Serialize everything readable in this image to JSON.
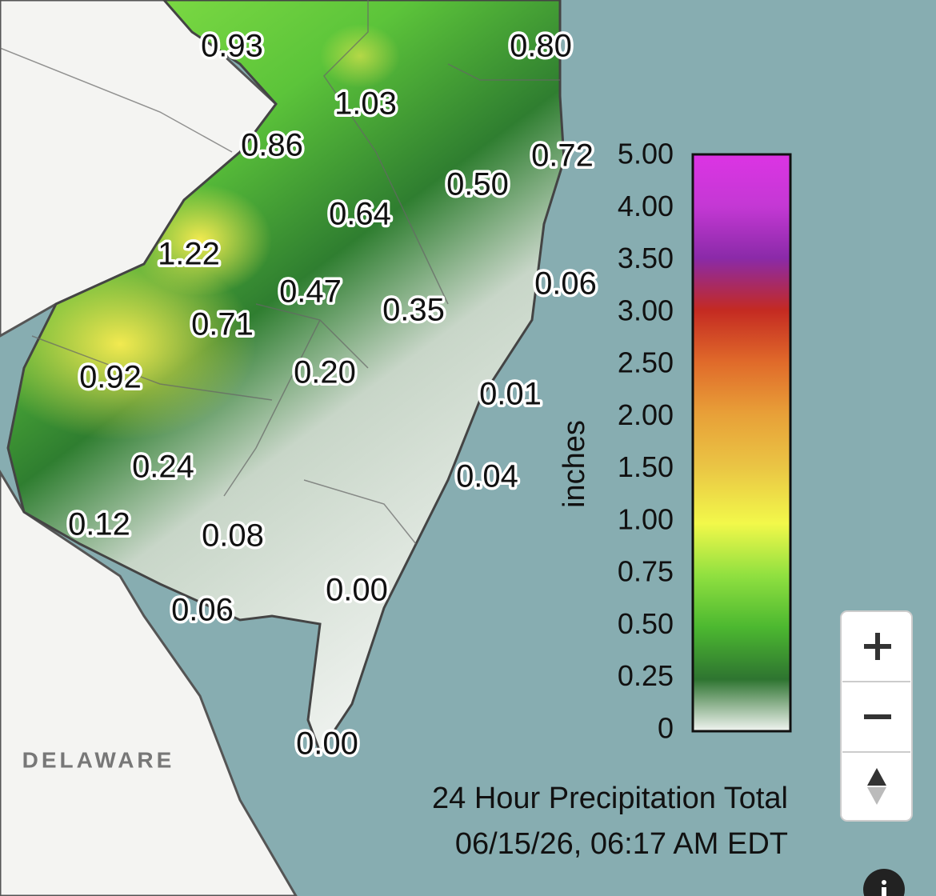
{
  "map": {
    "stations": [
      "0.93",
      "0.80",
      "1.03",
      "0.86",
      "0.72",
      "0.50",
      "0.64",
      "1.22",
      "0.47",
      "0.06",
      "0.35",
      "0.71",
      "0.92",
      "0.20",
      "0.01",
      "0.24",
      "0.04",
      "0.12",
      "0.08",
      "0.00",
      "0.06",
      "0.00"
    ],
    "region_label": "DELAWARE",
    "legend": {
      "unit": "inches",
      "ticks": [
        "5.00",
        "4.00",
        "3.50",
        "3.00",
        "2.50",
        "2.00",
        "1.50",
        "1.00",
        "0.75",
        "0.50",
        "0.25",
        "0"
      ]
    },
    "title": "24 Hour Precipitation Total",
    "timestamp": "06/15/26, 06:17 AM EDT"
  }
}
